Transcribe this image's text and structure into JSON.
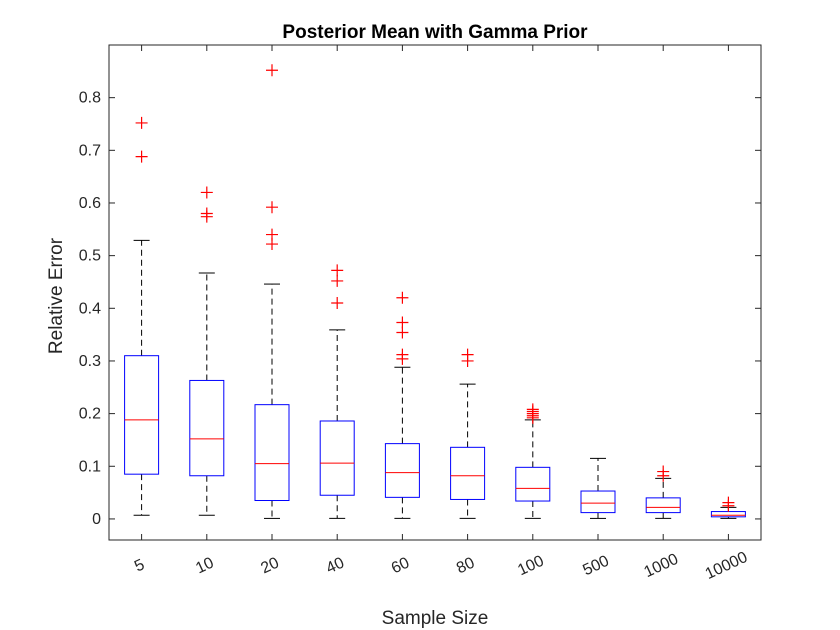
{
  "chart_data": {
    "type": "boxplot",
    "title": "Posterior Mean with Gamma Prior",
    "xlabel": "Sample Size",
    "ylabel": "Relative Error",
    "ylim": [
      -0.04,
      0.9
    ],
    "yticks": [
      0,
      0.1,
      0.2,
      0.3,
      0.4,
      0.5,
      0.6,
      0.7,
      0.8
    ],
    "categories": [
      "5",
      "10",
      "20",
      "40",
      "60",
      "80",
      "100",
      "500",
      "1000",
      "10000"
    ],
    "boxes": [
      {
        "category": "5",
        "whisker_low": 0.007,
        "q1": 0.085,
        "median": 0.188,
        "q3": 0.31,
        "whisker_high": 0.529,
        "outliers": [
          0.688,
          0.752
        ]
      },
      {
        "category": "10",
        "whisker_low": 0.007,
        "q1": 0.082,
        "median": 0.152,
        "q3": 0.263,
        "whisker_high": 0.467,
        "outliers": [
          0.574,
          0.58,
          0.62
        ]
      },
      {
        "category": "20",
        "whisker_low": 0.001,
        "q1": 0.035,
        "median": 0.105,
        "q3": 0.217,
        "whisker_high": 0.446,
        "outliers": [
          0.522,
          0.54,
          0.592,
          0.852
        ]
      },
      {
        "category": "40",
        "whisker_low": 0.001,
        "q1": 0.045,
        "median": 0.106,
        "q3": 0.186,
        "whisker_high": 0.359,
        "outliers": [
          0.41,
          0.452,
          0.472
        ]
      },
      {
        "category": "60",
        "whisker_low": 0.001,
        "q1": 0.041,
        "median": 0.088,
        "q3": 0.143,
        "whisker_high": 0.288,
        "outliers": [
          0.304,
          0.312,
          0.354,
          0.373,
          0.42
        ]
      },
      {
        "category": "80",
        "whisker_low": 0.001,
        "q1": 0.037,
        "median": 0.082,
        "q3": 0.136,
        "whisker_high": 0.256,
        "outliers": [
          0.3,
          0.312
        ]
      },
      {
        "category": "100",
        "whisker_low": 0.001,
        "q1": 0.034,
        "median": 0.058,
        "q3": 0.098,
        "whisker_high": 0.188,
        "outliers": [
          0.192,
          0.196,
          0.2,
          0.204,
          0.208
        ]
      },
      {
        "category": "500",
        "whisker_low": 0.001,
        "q1": 0.012,
        "median": 0.03,
        "q3": 0.053,
        "whisker_high": 0.115,
        "outliers": []
      },
      {
        "category": "1000",
        "whisker_low": 0.001,
        "q1": 0.012,
        "median": 0.022,
        "q3": 0.04,
        "whisker_high": 0.077,
        "outliers": [
          0.082,
          0.09
        ]
      },
      {
        "category": "10000",
        "whisker_low": 0.001,
        "q1": 0.004,
        "median": 0.007,
        "q3": 0.014,
        "whisker_high": 0.022,
        "outliers": [
          0.025,
          0.031
        ]
      }
    ],
    "colors": {
      "box": "#0000ff",
      "median": "#ff0000",
      "whisker": "#000000",
      "outlier": "#ff0000",
      "axis": "#262626"
    },
    "grid": false
  }
}
